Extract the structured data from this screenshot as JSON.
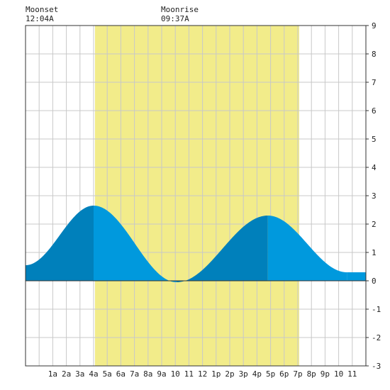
{
  "moon": {
    "moonset": {
      "label": "Moonset",
      "time": "12:04A"
    },
    "moonrise": {
      "label": "Moonrise",
      "time": "09:37A"
    }
  },
  "colors": {
    "daylight": "#f2ec8a",
    "tide_rising": "#0080bb",
    "tide_falling": "#0099dd",
    "grid": "#c8c8c8",
    "axis": "#333333"
  },
  "chart_data": {
    "type": "area",
    "x_unit": "hour of day",
    "xlim": [
      -1,
      24
    ],
    "ylim": [
      -3,
      9
    ],
    "y_ticks": [
      -3,
      -2,
      -1,
      0,
      1,
      2,
      3,
      4,
      5,
      6,
      7,
      8,
      9
    ],
    "x_tick_labels": [
      "1a",
      "2a",
      "3a",
      "4a",
      "5a",
      "6a",
      "7a",
      "8a",
      "9a",
      "10",
      "11",
      "12",
      "1p",
      "2p",
      "3p",
      "4p",
      "5p",
      "6p",
      "7p",
      "8p",
      "9p",
      "10",
      "11"
    ],
    "daylight": {
      "start_hour": 4.1,
      "end_hour": 19.1
    },
    "tide_extremes": [
      {
        "hour": -1.0,
        "value": 0.55
      },
      {
        "hour": 4.0,
        "value": 2.65
      },
      {
        "hour": 10.1,
        "value": -0.05
      },
      {
        "hour": 16.8,
        "value": 2.3
      },
      {
        "hour": 22.6,
        "value": 0.3
      },
      {
        "hour": 24.0,
        "value": 0.3
      }
    ]
  }
}
